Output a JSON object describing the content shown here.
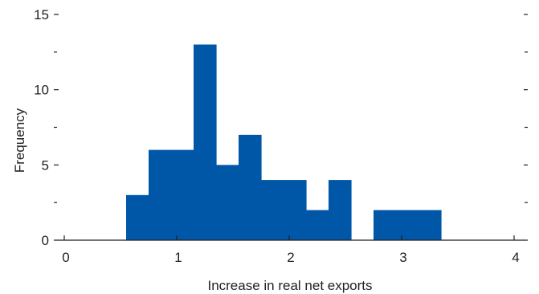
{
  "chart_data": {
    "type": "bar",
    "title": "",
    "xlabel": "Increase in real net exports",
    "ylabel": "Frequency",
    "xlim": [
      0,
      4
    ],
    "ylim": [
      0,
      15
    ],
    "bin_width": 0.2,
    "bins": [
      {
        "x0": 0.55,
        "x1": 0.75,
        "value": 3
      },
      {
        "x0": 0.75,
        "x1": 0.95,
        "value": 6
      },
      {
        "x0": 0.95,
        "x1": 1.15,
        "value": 6
      },
      {
        "x0": 1.15,
        "x1": 1.35,
        "value": 13
      },
      {
        "x0": 1.35,
        "x1": 1.55,
        "value": 5
      },
      {
        "x0": 1.55,
        "x1": 1.75,
        "value": 7
      },
      {
        "x0": 1.75,
        "x1": 1.95,
        "value": 4
      },
      {
        "x0": 1.95,
        "x1": 2.15,
        "value": 4
      },
      {
        "x0": 2.15,
        "x1": 2.35,
        "value": 2
      },
      {
        "x0": 2.35,
        "x1": 2.55,
        "value": 4
      },
      {
        "x0": 2.55,
        "x1": 2.75,
        "value": 0
      },
      {
        "x0": 2.75,
        "x1": 2.95,
        "value": 2
      },
      {
        "x0": 2.95,
        "x1": 3.15,
        "value": 2
      },
      {
        "x0": 3.15,
        "x1": 3.35,
        "value": 2
      }
    ],
    "x_ticks": [
      "0",
      "1",
      "2",
      "3",
      "4"
    ],
    "y_ticks": [
      "0",
      "5",
      "10",
      "15"
    ],
    "y_minor_ticks": [
      2.5,
      7.5,
      12.5
    ],
    "colors": {
      "bar": "#0057a8",
      "axis": "#231f20",
      "background": "#ffffff"
    },
    "grid": false
  }
}
